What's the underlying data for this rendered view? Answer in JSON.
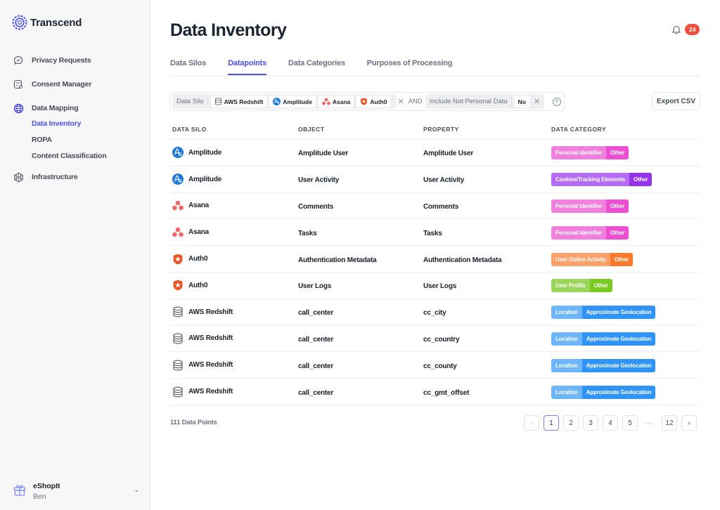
{
  "app": {
    "name": "Transcend"
  },
  "sidebar": {
    "items": [
      {
        "label": "Privacy Requests",
        "icon": "chat-check-icon"
      },
      {
        "label": "Consent Manager",
        "icon": "consent-icon"
      },
      {
        "label": "Data Mapping",
        "icon": "globe-icon"
      },
      {
        "label": "Infrastructure",
        "icon": "cube-icon"
      }
    ],
    "sub_items": [
      {
        "label": "Data Inventory",
        "active": true
      },
      {
        "label": "ROPA"
      },
      {
        "label": "Content Classification"
      }
    ],
    "org": {
      "name": "eShopIt",
      "user": "Ben"
    }
  },
  "header": {
    "title": "Data Inventory",
    "notifications": "24"
  },
  "tabs": [
    {
      "label": "Data Silos"
    },
    {
      "label": "Datapoints",
      "active": true
    },
    {
      "label": "Data Categories"
    },
    {
      "label": "Purposes of Processing"
    }
  ],
  "filters": {
    "silo_key": "Data Silo",
    "silos": [
      "AWS Redshift",
      "Amplitude",
      "Asana",
      "Auth0"
    ],
    "connector": "AND",
    "personal_key": "Include Not Personal Data",
    "personal_value": "No",
    "export_label": "Export CSV"
  },
  "table": {
    "columns": [
      "DATA SILO",
      "OBJECT",
      "PROPERTY",
      "DATA CATEGORY"
    ],
    "rows": [
      {
        "silo": "Amplitude",
        "object": "Amplitude User",
        "property": "Amplitude User",
        "cat": "Personal Identifier",
        "sub": "Other"
      },
      {
        "silo": "Amplitude",
        "object": "User Activity",
        "property": "User Activity",
        "cat": "Cookies/Tracking Elements",
        "sub": "Other"
      },
      {
        "silo": "Asana",
        "object": "Comments",
        "property": "Comments",
        "cat": "Personal Identifier",
        "sub": "Other"
      },
      {
        "silo": "Asana",
        "object": "Tasks",
        "property": "Tasks",
        "cat": "Personal Identifier",
        "sub": "Other"
      },
      {
        "silo": "Auth0",
        "object": "Authentication Metadata",
        "property": "Authentication Metadata",
        "cat": "User Online Activity",
        "sub": "Other"
      },
      {
        "silo": "Auth0",
        "object": "User Logs",
        "property": "User Logs",
        "cat": "User Profile",
        "sub": "Other"
      },
      {
        "silo": "AWS Redshift",
        "object": "call_center",
        "property": "cc_city",
        "cat": "Location",
        "sub": "Approximate Geolocation"
      },
      {
        "silo": "AWS Redshift",
        "object": "call_center",
        "property": "cc_country",
        "cat": "Location",
        "sub": "Approximate Geolocation"
      },
      {
        "silo": "AWS Redshift",
        "object": "call_center",
        "property": "cc_county",
        "cat": "Location",
        "sub": "Approximate Geolocation"
      },
      {
        "silo": "AWS Redshift",
        "object": "call_center",
        "property": "cc_gmt_offset",
        "cat": "Location",
        "sub": "Approximate Geolocation"
      }
    ]
  },
  "category_colors": {
    "Personal Identifier": [
      "#f17fdc",
      "#ec4fd2"
    ],
    "Cookies/Tracking Elements": [
      "#b46cf7",
      "#9333ea"
    ],
    "User Online Activity": [
      "#fca16a",
      "#f97a2c"
    ],
    "User Profile": [
      "#9bd55a",
      "#7acb1f"
    ],
    "Location": [
      "#6eb6fb",
      "#2f93f7"
    ]
  },
  "footer": {
    "count": "111 Data Points",
    "pages": [
      "1",
      "2",
      "3",
      "4",
      "5",
      "···",
      "12"
    ],
    "current_page": "1",
    "prev": "‹",
    "next": "›"
  }
}
